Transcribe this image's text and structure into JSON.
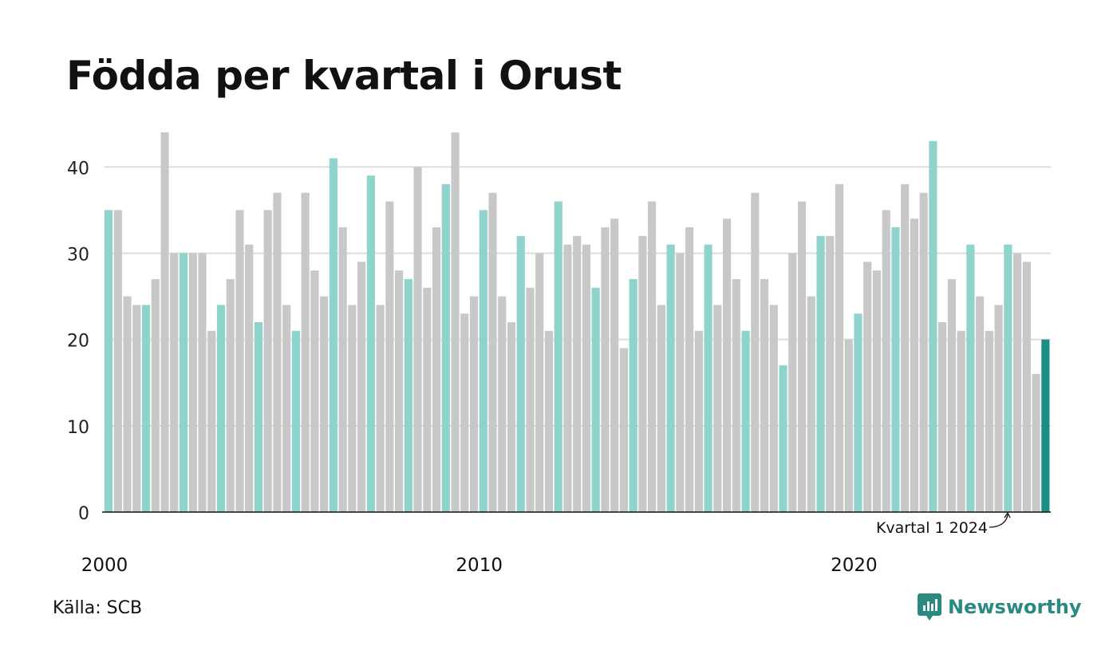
{
  "title": "Födda per kvartal i Orust",
  "source": "Källa: SCB",
  "brand": {
    "name": "Newsworthy",
    "icon": "newsworthy-logo-icon"
  },
  "colors": {
    "q1": "#8ed3cc",
    "other": "#c8c8c8",
    "latest": "#1b8f84",
    "grid": "#dddddd",
    "axis": "#111111",
    "brand": "#2a8a80"
  },
  "chart_data": {
    "type": "bar",
    "title": "Födda per kvartal i Orust",
    "xlabel": "",
    "ylabel": "",
    "ylim": [
      0,
      44
    ],
    "yticks": [
      0,
      10,
      20,
      30,
      40
    ],
    "xtick_labels": [
      "2000",
      "2010",
      "2020"
    ],
    "grid": true,
    "start": "2000 Q1",
    "values": [
      35,
      35,
      25,
      24,
      24,
      27,
      44,
      30,
      30,
      30,
      30,
      21,
      24,
      27,
      35,
      31,
      22,
      35,
      37,
      24,
      21,
      37,
      28,
      25,
      41,
      33,
      24,
      29,
      39,
      24,
      36,
      28,
      27,
      40,
      26,
      33,
      38,
      44,
      23,
      25,
      35,
      37,
      25,
      22,
      32,
      26,
      30,
      21,
      36,
      31,
      32,
      31,
      26,
      33,
      34,
      19,
      27,
      32,
      36,
      24,
      31,
      30,
      33,
      21,
      31,
      24,
      34,
      27,
      21,
      37,
      27,
      24,
      17,
      30,
      36,
      25,
      32,
      32,
      38,
      20,
      23,
      29,
      28,
      35,
      33,
      38,
      34,
      37,
      43,
      22,
      27,
      21,
      31,
      25,
      21,
      24,
      31,
      30,
      29,
      16,
      20
    ],
    "annotation": "Kvartal 1 2024"
  }
}
